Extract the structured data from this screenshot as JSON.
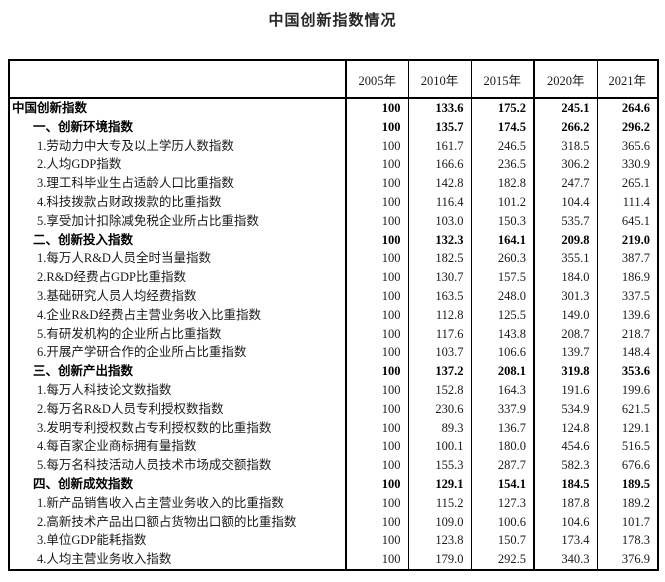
{
  "chart_data": {
    "type": "table",
    "title": "中国创新指数情况",
    "columns": [
      "2005年",
      "2010年",
      "2015年",
      "2020年",
      "2021年"
    ],
    "rows": [
      {
        "label": "中国创新指数",
        "level": 0,
        "bold": true,
        "values": [
          "100",
          "133.6",
          "175.2",
          "245.1",
          "264.6"
        ]
      },
      {
        "label": "一、创新环境指数",
        "level": 1,
        "bold": true,
        "values": [
          "100",
          "135.7",
          "174.5",
          "266.2",
          "296.2"
        ]
      },
      {
        "label": "1.劳动力中大专及以上学历人数指数",
        "level": 2,
        "bold": false,
        "values": [
          "100",
          "161.7",
          "246.5",
          "318.5",
          "365.6"
        ]
      },
      {
        "label": "2.人均GDP指数",
        "level": 2,
        "bold": false,
        "values": [
          "100",
          "166.6",
          "236.5",
          "306.2",
          "330.9"
        ]
      },
      {
        "label": "3.理工科毕业生占适龄人口比重指数",
        "level": 2,
        "bold": false,
        "values": [
          "100",
          "142.8",
          "182.8",
          "247.7",
          "265.1"
        ]
      },
      {
        "label": "4.科技拨款占财政拨款的比重指数",
        "level": 2,
        "bold": false,
        "values": [
          "100",
          "116.4",
          "101.2",
          "104.4",
          "111.4"
        ]
      },
      {
        "label": "5.享受加计扣除减免税企业所占比重指数",
        "level": 2,
        "bold": false,
        "values": [
          "100",
          "103.0",
          "150.3",
          "535.7",
          "645.1"
        ]
      },
      {
        "label": "二、创新投入指数",
        "level": 1,
        "bold": true,
        "values": [
          "100",
          "132.3",
          "164.1",
          "209.8",
          "219.0"
        ]
      },
      {
        "label": "1.每万人R&D人员全时当量指数",
        "level": 2,
        "bold": false,
        "values": [
          "100",
          "182.5",
          "260.3",
          "355.1",
          "387.7"
        ]
      },
      {
        "label": "2.R&D经费占GDP比重指数",
        "level": 2,
        "bold": false,
        "values": [
          "100",
          "130.7",
          "157.5",
          "184.0",
          "186.9"
        ]
      },
      {
        "label": "3.基础研究人员人均经费指数",
        "level": 2,
        "bold": false,
        "values": [
          "100",
          "163.5",
          "248.0",
          "301.3",
          "337.5"
        ]
      },
      {
        "label": "4.企业R&D经费占主营业务收入比重指数",
        "level": 2,
        "bold": false,
        "values": [
          "100",
          "112.8",
          "125.5",
          "149.0",
          "139.6"
        ]
      },
      {
        "label": "5.有研发机构的企业所占比重指数",
        "level": 2,
        "bold": false,
        "values": [
          "100",
          "117.6",
          "143.8",
          "208.7",
          "218.7"
        ]
      },
      {
        "label": "6.开展产学研合作的企业所占比重指数",
        "level": 2,
        "bold": false,
        "values": [
          "100",
          "103.7",
          "106.6",
          "139.7",
          "148.4"
        ]
      },
      {
        "label": "三、创新产出指数",
        "level": 1,
        "bold": true,
        "values": [
          "100",
          "137.2",
          "208.1",
          "319.8",
          "353.6"
        ]
      },
      {
        "label": "1.每万人科技论文数指数",
        "level": 2,
        "bold": false,
        "values": [
          "100",
          "152.8",
          "164.3",
          "191.6",
          "199.6"
        ]
      },
      {
        "label": "2.每万名R&D人员专利授权数指数",
        "level": 2,
        "bold": false,
        "values": [
          "100",
          "230.6",
          "337.9",
          "534.9",
          "621.5"
        ]
      },
      {
        "label": "3.发明专利授权数占专利授权数的比重指数",
        "level": 2,
        "bold": false,
        "values": [
          "100",
          "89.3",
          "136.7",
          "124.8",
          "129.1"
        ]
      },
      {
        "label": "4.每百家企业商标拥有量指数",
        "level": 2,
        "bold": false,
        "values": [
          "100",
          "100.1",
          "180.0",
          "454.6",
          "516.5"
        ]
      },
      {
        "label": "5.每万名科技活动人员技术市场成交额指数",
        "level": 2,
        "bold": false,
        "values": [
          "100",
          "155.3",
          "287.7",
          "582.3",
          "676.6"
        ]
      },
      {
        "label": "四、创新成效指数",
        "level": 1,
        "bold": true,
        "values": [
          "100",
          "129.1",
          "154.1",
          "184.5",
          "189.5"
        ]
      },
      {
        "label": "1.新产品销售收入占主营业务收入的比重指数",
        "level": 2,
        "bold": false,
        "values": [
          "100",
          "115.2",
          "127.3",
          "187.8",
          "189.2"
        ]
      },
      {
        "label": "2.高新技术产品出口额占货物出口额的比重指数",
        "level": 2,
        "bold": false,
        "values": [
          "100",
          "109.0",
          "100.6",
          "104.6",
          "101.7"
        ]
      },
      {
        "label": "3.单位GDP能耗指数",
        "level": 2,
        "bold": false,
        "values": [
          "100",
          "123.8",
          "150.7",
          "173.4",
          "178.3"
        ]
      },
      {
        "label": "4.人均主营业务收入指数",
        "level": 2,
        "bold": false,
        "values": [
          "100",
          "179.0",
          "292.5",
          "340.3",
          "376.9"
        ]
      }
    ],
    "layout": {
      "border_color": "#000000",
      "text_color": "#1a1a1a",
      "background_color": "#ffffff",
      "value_alignment": "right",
      "header_alignment": "center"
    }
  }
}
